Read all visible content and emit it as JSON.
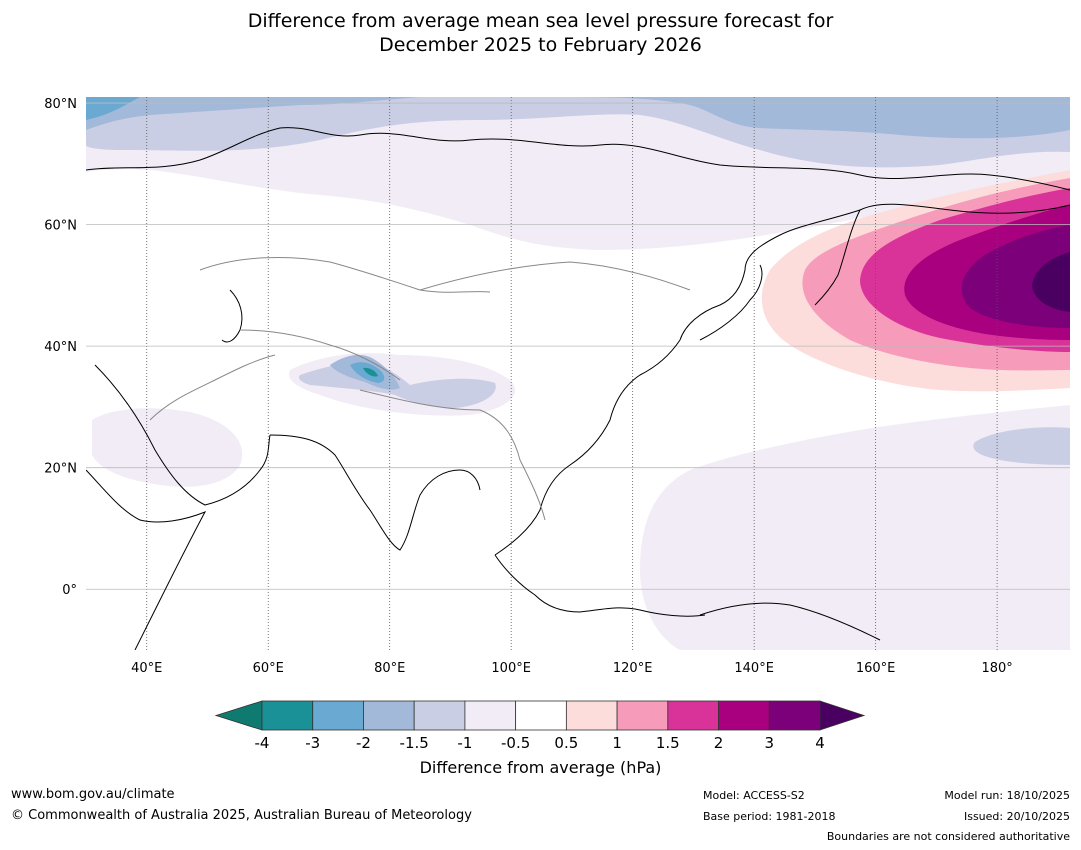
{
  "title": {
    "line1": "Difference from average mean sea level pressure forecast for",
    "line2": "December 2025 to February 2026"
  },
  "map": {
    "lat_labels": [
      "80°N",
      "60°N",
      "40°N",
      "20°N",
      "0°"
    ],
    "lat_values": [
      80,
      60,
      40,
      20,
      0
    ],
    "lon_labels": [
      "40°E",
      "60°E",
      "80°E",
      "100°E",
      "120°E",
      "140°E",
      "160°E",
      "180°"
    ],
    "lon_values": [
      40,
      60,
      80,
      100,
      120,
      140,
      160,
      180
    ],
    "extent": {
      "lon_min": 30,
      "lon_max": 192,
      "lat_min": -10,
      "lat_max": 81
    }
  },
  "colorbar": {
    "label": "Difference from average (hPa)",
    "ticks": [
      "-4",
      "-3",
      "-2",
      "-1.5",
      "-1",
      "-0.5",
      "0.5",
      "1",
      "1.5",
      "2",
      "3",
      "4"
    ],
    "colors": [
      "#0f7a70",
      "#1a9196",
      "#6aa9d1",
      "#a3b9d9",
      "#cacee5",
      "#f2ecf6",
      "#ffffff",
      "#fddcdc",
      "#f79bbb",
      "#d9339a",
      "#a8007e",
      "#7b007a",
      "#4a0060"
    ]
  },
  "footer": {
    "url": "www.bom.gov.au/climate",
    "copyright": "© Commonwealth of Australia 2025, Australian Bureau of Meteorology",
    "model": "Model: ACCESS-S2",
    "base_period": "Base period: 1981-2018",
    "model_run": "Model run: 18/10/2025",
    "issued": "Issued: 20/10/2025",
    "disclaimer": "Boundaries are not considered authoritative"
  }
}
